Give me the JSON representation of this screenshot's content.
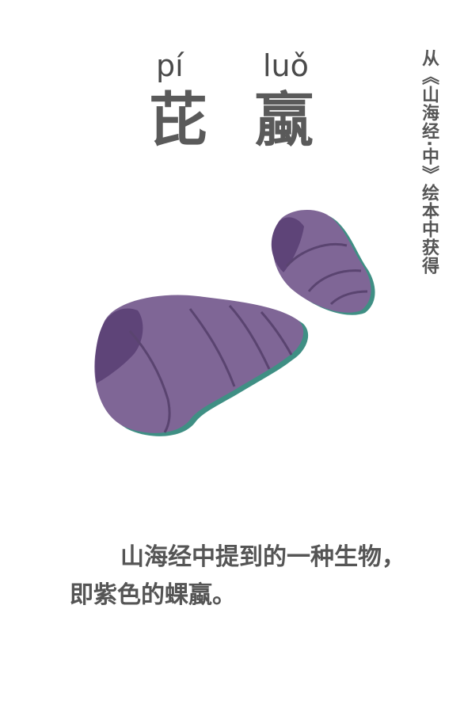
{
  "title": {
    "pinyin": [
      "pí",
      "luǒ"
    ],
    "characters": [
      "芘",
      "蠃"
    ]
  },
  "side_note": "从《山海经·中》绘本中获得",
  "description": "山海经中提到的一种生物，即紫色的蜾蠃。",
  "illustration": {
    "subject": "snail-shell-icon",
    "colors": {
      "shell": "#7f6696",
      "shell_dark": "#5e4478",
      "outline": "#5a4470",
      "shadow": "#3f8f84"
    }
  }
}
